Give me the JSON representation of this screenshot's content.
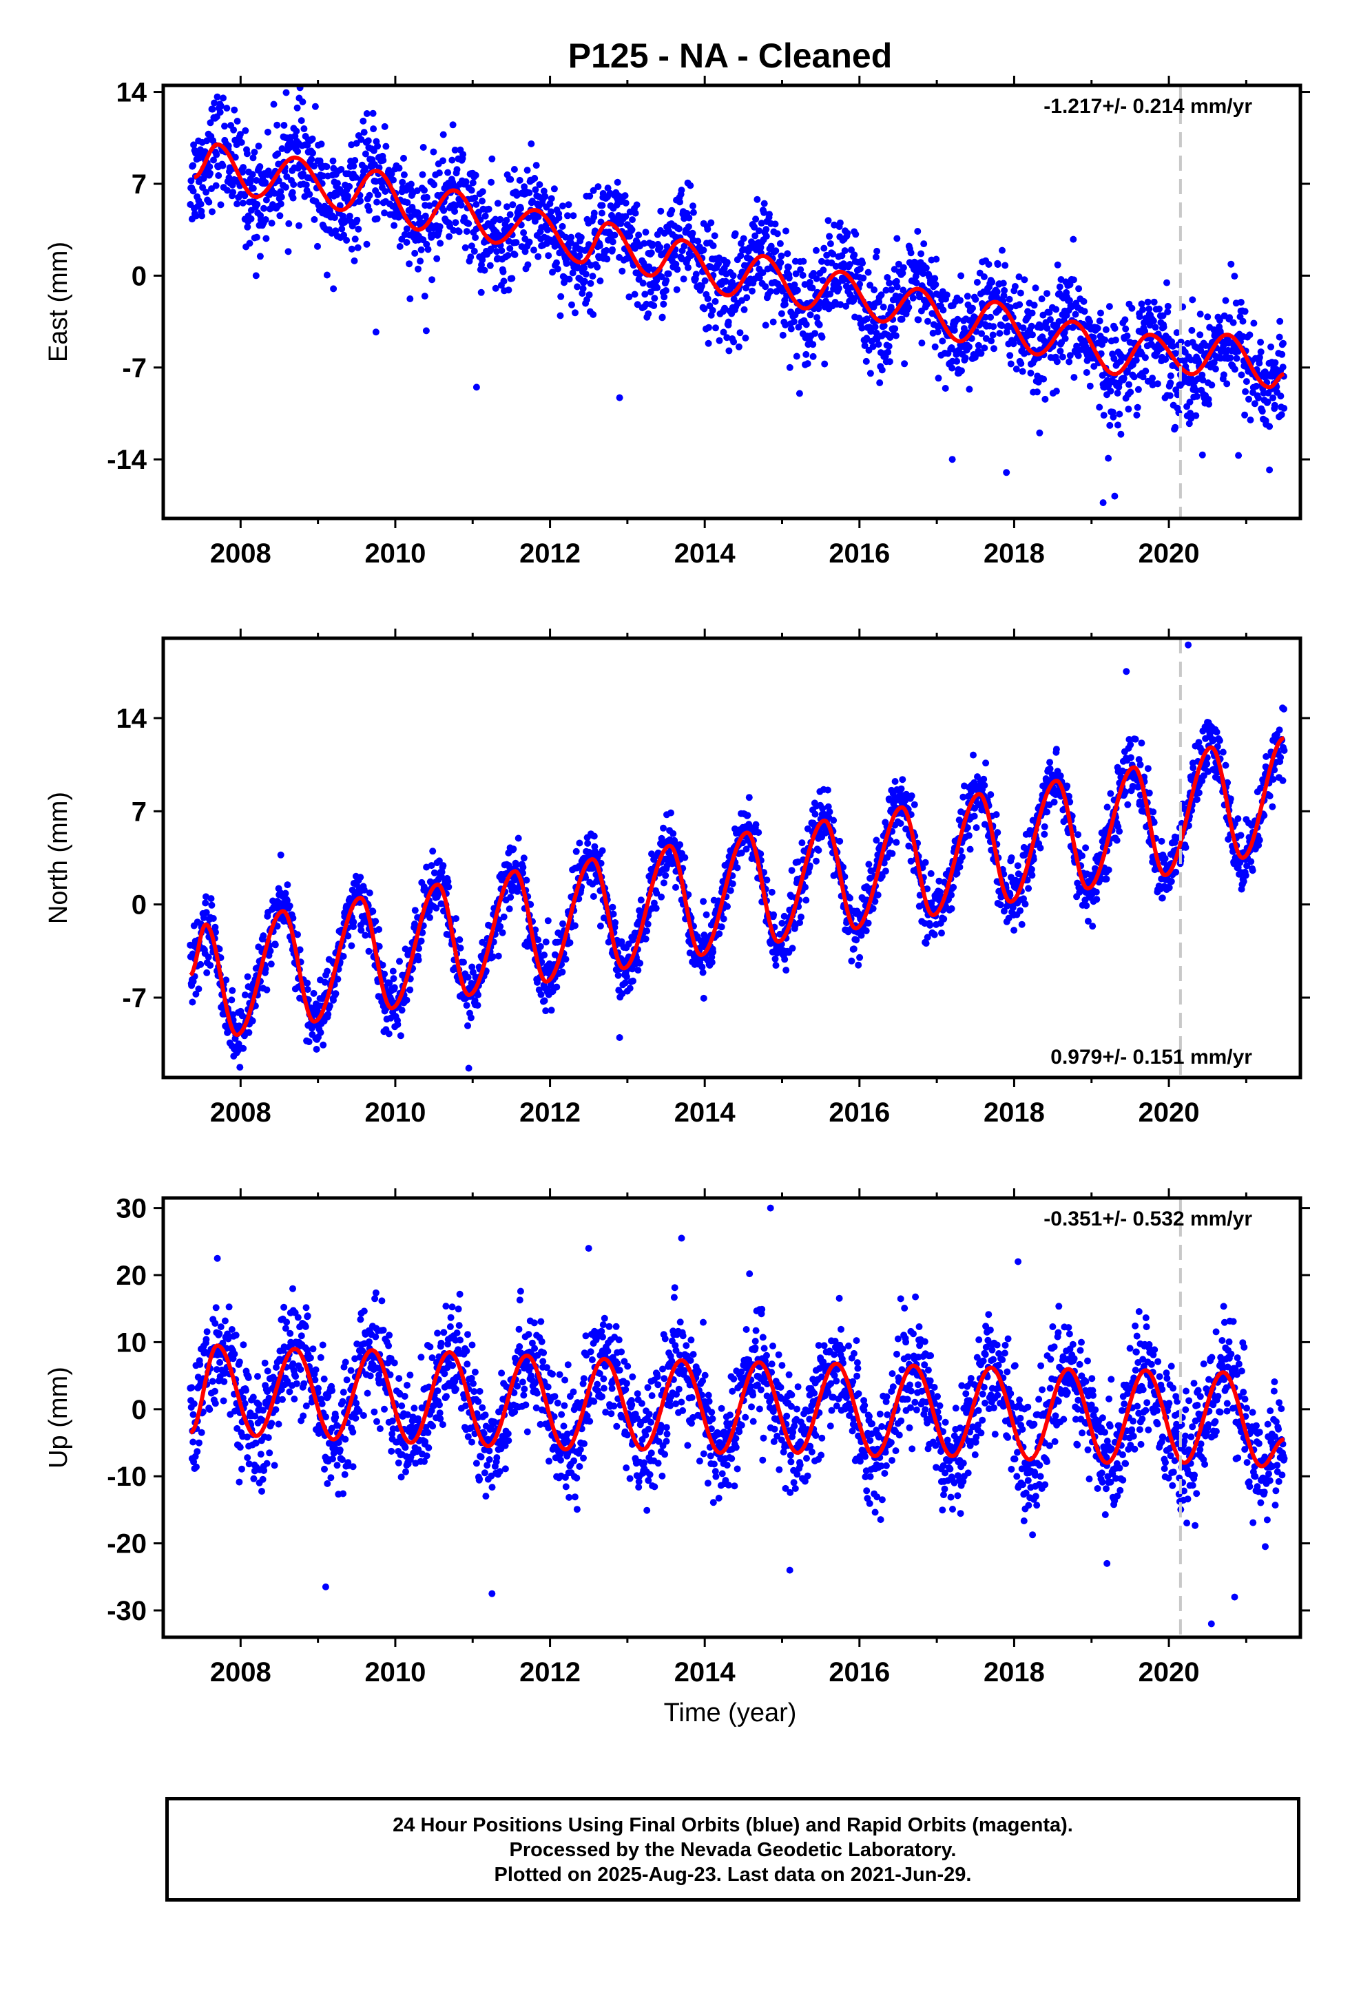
{
  "title": "P125  - NA - Cleaned",
  "xlabel": "Time (year)",
  "footer": {
    "line1": "24 Hour Positions Using Final Orbits (blue) and Rapid Orbits (magenta).",
    "line2": "Processed by the Nevada Geodetic Laboratory.",
    "line3": "Plotted on 2025-Aug-23. Last data on 2021-Jun-29."
  },
  "colors": {
    "points": "#0000ff",
    "model": "#ff0000",
    "marker": "#c8c8c8",
    "frame": "#000000"
  },
  "chart_data": [
    {
      "type": "scatter",
      "title": "P125  - NA - Cleaned",
      "ylabel": "East (mm)",
      "xlabel": "",
      "xlim": [
        2007.0,
        2021.7
      ],
      "ylim": [
        -18.5,
        14.5
      ],
      "yticks": [
        -14,
        -7,
        0,
        7,
        14
      ],
      "xticks": [
        2008,
        2010,
        2012,
        2014,
        2016,
        2018,
        2020
      ],
      "vline": 2020.15,
      "rate_label": "-1.217+/- 0.214 mm/yr",
      "rate_position": "top-right",
      "data_span": [
        2007.35,
        2021.49
      ],
      "model": {
        "series": "model",
        "x": [
          2007.4,
          2007.7,
          2008.2,
          2008.7,
          2009.3,
          2009.75,
          2010.3,
          2010.75,
          2011.3,
          2011.8,
          2012.4,
          2012.75,
          2013.3,
          2013.7,
          2014.3,
          2014.75,
          2015.3,
          2015.75,
          2016.3,
          2016.75,
          2017.3,
          2017.75,
          2018.3,
          2018.75,
          2019.3,
          2019.75,
          2020.3,
          2020.75,
          2021.3,
          2021.49
        ],
        "y": [
          7.5,
          10.0,
          6.0,
          9.0,
          5.0,
          8.0,
          3.5,
          6.5,
          2.5,
          5.0,
          1.0,
          4.0,
          0.0,
          2.7,
          -1.5,
          1.5,
          -2.5,
          0.3,
          -3.5,
          -1.0,
          -5.0,
          -2.0,
          -6.0,
          -3.5,
          -7.5,
          -4.5,
          -7.5,
          -4.5,
          -8.5,
          -7.5
        ]
      },
      "points": {
        "series": "daily positions",
        "trend": -1.217,
        "amplitude": 1.8,
        "noise": 2.0,
        "n": 2600,
        "outliers": [
          [
            2008.2,
            0.0
          ],
          [
            2009.2,
            -1.0
          ],
          [
            2009.75,
            -4.3
          ],
          [
            2010.4,
            -4.2
          ],
          [
            2011.05,
            -8.5
          ],
          [
            2012.9,
            -9.3
          ],
          [
            2017.2,
            -14.0
          ],
          [
            2017.9,
            -15.0
          ],
          [
            2019.15,
            -17.3
          ],
          [
            2019.3,
            -16.8
          ],
          [
            2020.9,
            -13.7
          ],
          [
            2021.3,
            -14.8
          ]
        ]
      }
    },
    {
      "type": "scatter",
      "ylabel": "North (mm)",
      "xlabel": "",
      "xlim": [
        2007.0,
        2021.7
      ],
      "ylim": [
        -13.0,
        20.0
      ],
      "yticks": [
        -7,
        0,
        7,
        14
      ],
      "xticks": [
        2008,
        2010,
        2012,
        2014,
        2016,
        2018,
        2020
      ],
      "vline": 2020.15,
      "rate_label": "0.979+/- 0.151 mm/yr",
      "rate_position": "bottom-right",
      "data_span": [
        2007.35,
        2021.49
      ],
      "model": {
        "series": "model",
        "x": [
          2007.35,
          2007.55,
          2007.95,
          2008.55,
          2008.95,
          2009.55,
          2009.95,
          2010.55,
          2010.95,
          2011.55,
          2011.95,
          2012.55,
          2012.95,
          2013.55,
          2013.95,
          2014.55,
          2014.95,
          2015.55,
          2015.95,
          2016.55,
          2016.95,
          2017.55,
          2017.95,
          2018.55,
          2018.95,
          2019.55,
          2019.95,
          2020.55,
          2020.95,
          2021.49
        ],
        "y": [
          -5.3,
          -1.5,
          -9.8,
          -0.5,
          -8.8,
          0.5,
          -7.8,
          1.5,
          -6.8,
          2.5,
          -5.8,
          3.4,
          -4.8,
          4.4,
          -3.8,
          5.4,
          -2.8,
          6.3,
          -1.8,
          7.3,
          -0.8,
          8.3,
          0.2,
          9.3,
          1.2,
          10.3,
          2.2,
          11.8,
          3.5,
          12.5
        ]
      },
      "points": {
        "series": "daily positions",
        "trend": 0.979,
        "amplitude": 5.5,
        "noise": 1.2,
        "n": 2600,
        "outliers": [
          [
            2010.95,
            -12.3
          ],
          [
            2012.9,
            -10.0
          ],
          [
            2020.25,
            19.5
          ],
          [
            2019.45,
            17.5
          ]
        ]
      }
    },
    {
      "type": "scatter",
      "ylabel": "Up (mm)",
      "xlabel": "Time (year)",
      "xlim": [
        2007.0,
        2021.7
      ],
      "ylim": [
        -34.0,
        31.5
      ],
      "yticks": [
        -30,
        -20,
        -10,
        0,
        10,
        20,
        30
      ],
      "xticks": [
        2008,
        2010,
        2012,
        2014,
        2016,
        2018,
        2020
      ],
      "vline": 2020.15,
      "rate_label": "-0.351+/- 0.532 mm/yr",
      "rate_position": "top-right",
      "data_span": [
        2007.35,
        2021.49
      ],
      "model": {
        "series": "model",
        "x": [
          2007.35,
          2007.7,
          2008.2,
          2008.7,
          2009.2,
          2009.7,
          2010.2,
          2010.7,
          2011.2,
          2011.7,
          2012.2,
          2012.7,
          2013.2,
          2013.7,
          2014.2,
          2014.7,
          2015.2,
          2015.7,
          2016.2,
          2016.7,
          2017.2,
          2017.7,
          2018.2,
          2018.7,
          2019.2,
          2019.7,
          2020.2,
          2020.7,
          2021.2,
          2021.49
        ],
        "y": [
          -3.5,
          9.5,
          -4.0,
          9.0,
          -4.5,
          8.8,
          -5.0,
          8.5,
          -5.5,
          8.0,
          -6.0,
          7.5,
          -6.0,
          7.3,
          -6.5,
          7.0,
          -6.5,
          6.8,
          -7.0,
          6.5,
          -7.0,
          6.2,
          -7.5,
          6.0,
          -8.0,
          5.8,
          -8.0,
          5.5,
          -8.5,
          -4.5
        ]
      },
      "points": {
        "series": "daily positions",
        "trend": -0.351,
        "amplitude": 7.0,
        "noise": 4.2,
        "n": 2600,
        "outliers": [
          [
            2007.7,
            22.5
          ],
          [
            2012.5,
            24.0
          ],
          [
            2013.7,
            25.5
          ],
          [
            2014.85,
            30.0
          ],
          [
            2018.05,
            22.0
          ],
          [
            2009.1,
            -26.5
          ],
          [
            2011.25,
            -27.5
          ],
          [
            2015.1,
            -24.0
          ],
          [
            2020.55,
            -32.0
          ],
          [
            2020.85,
            -28.0
          ],
          [
            2019.2,
            -23.0
          ]
        ]
      }
    }
  ]
}
